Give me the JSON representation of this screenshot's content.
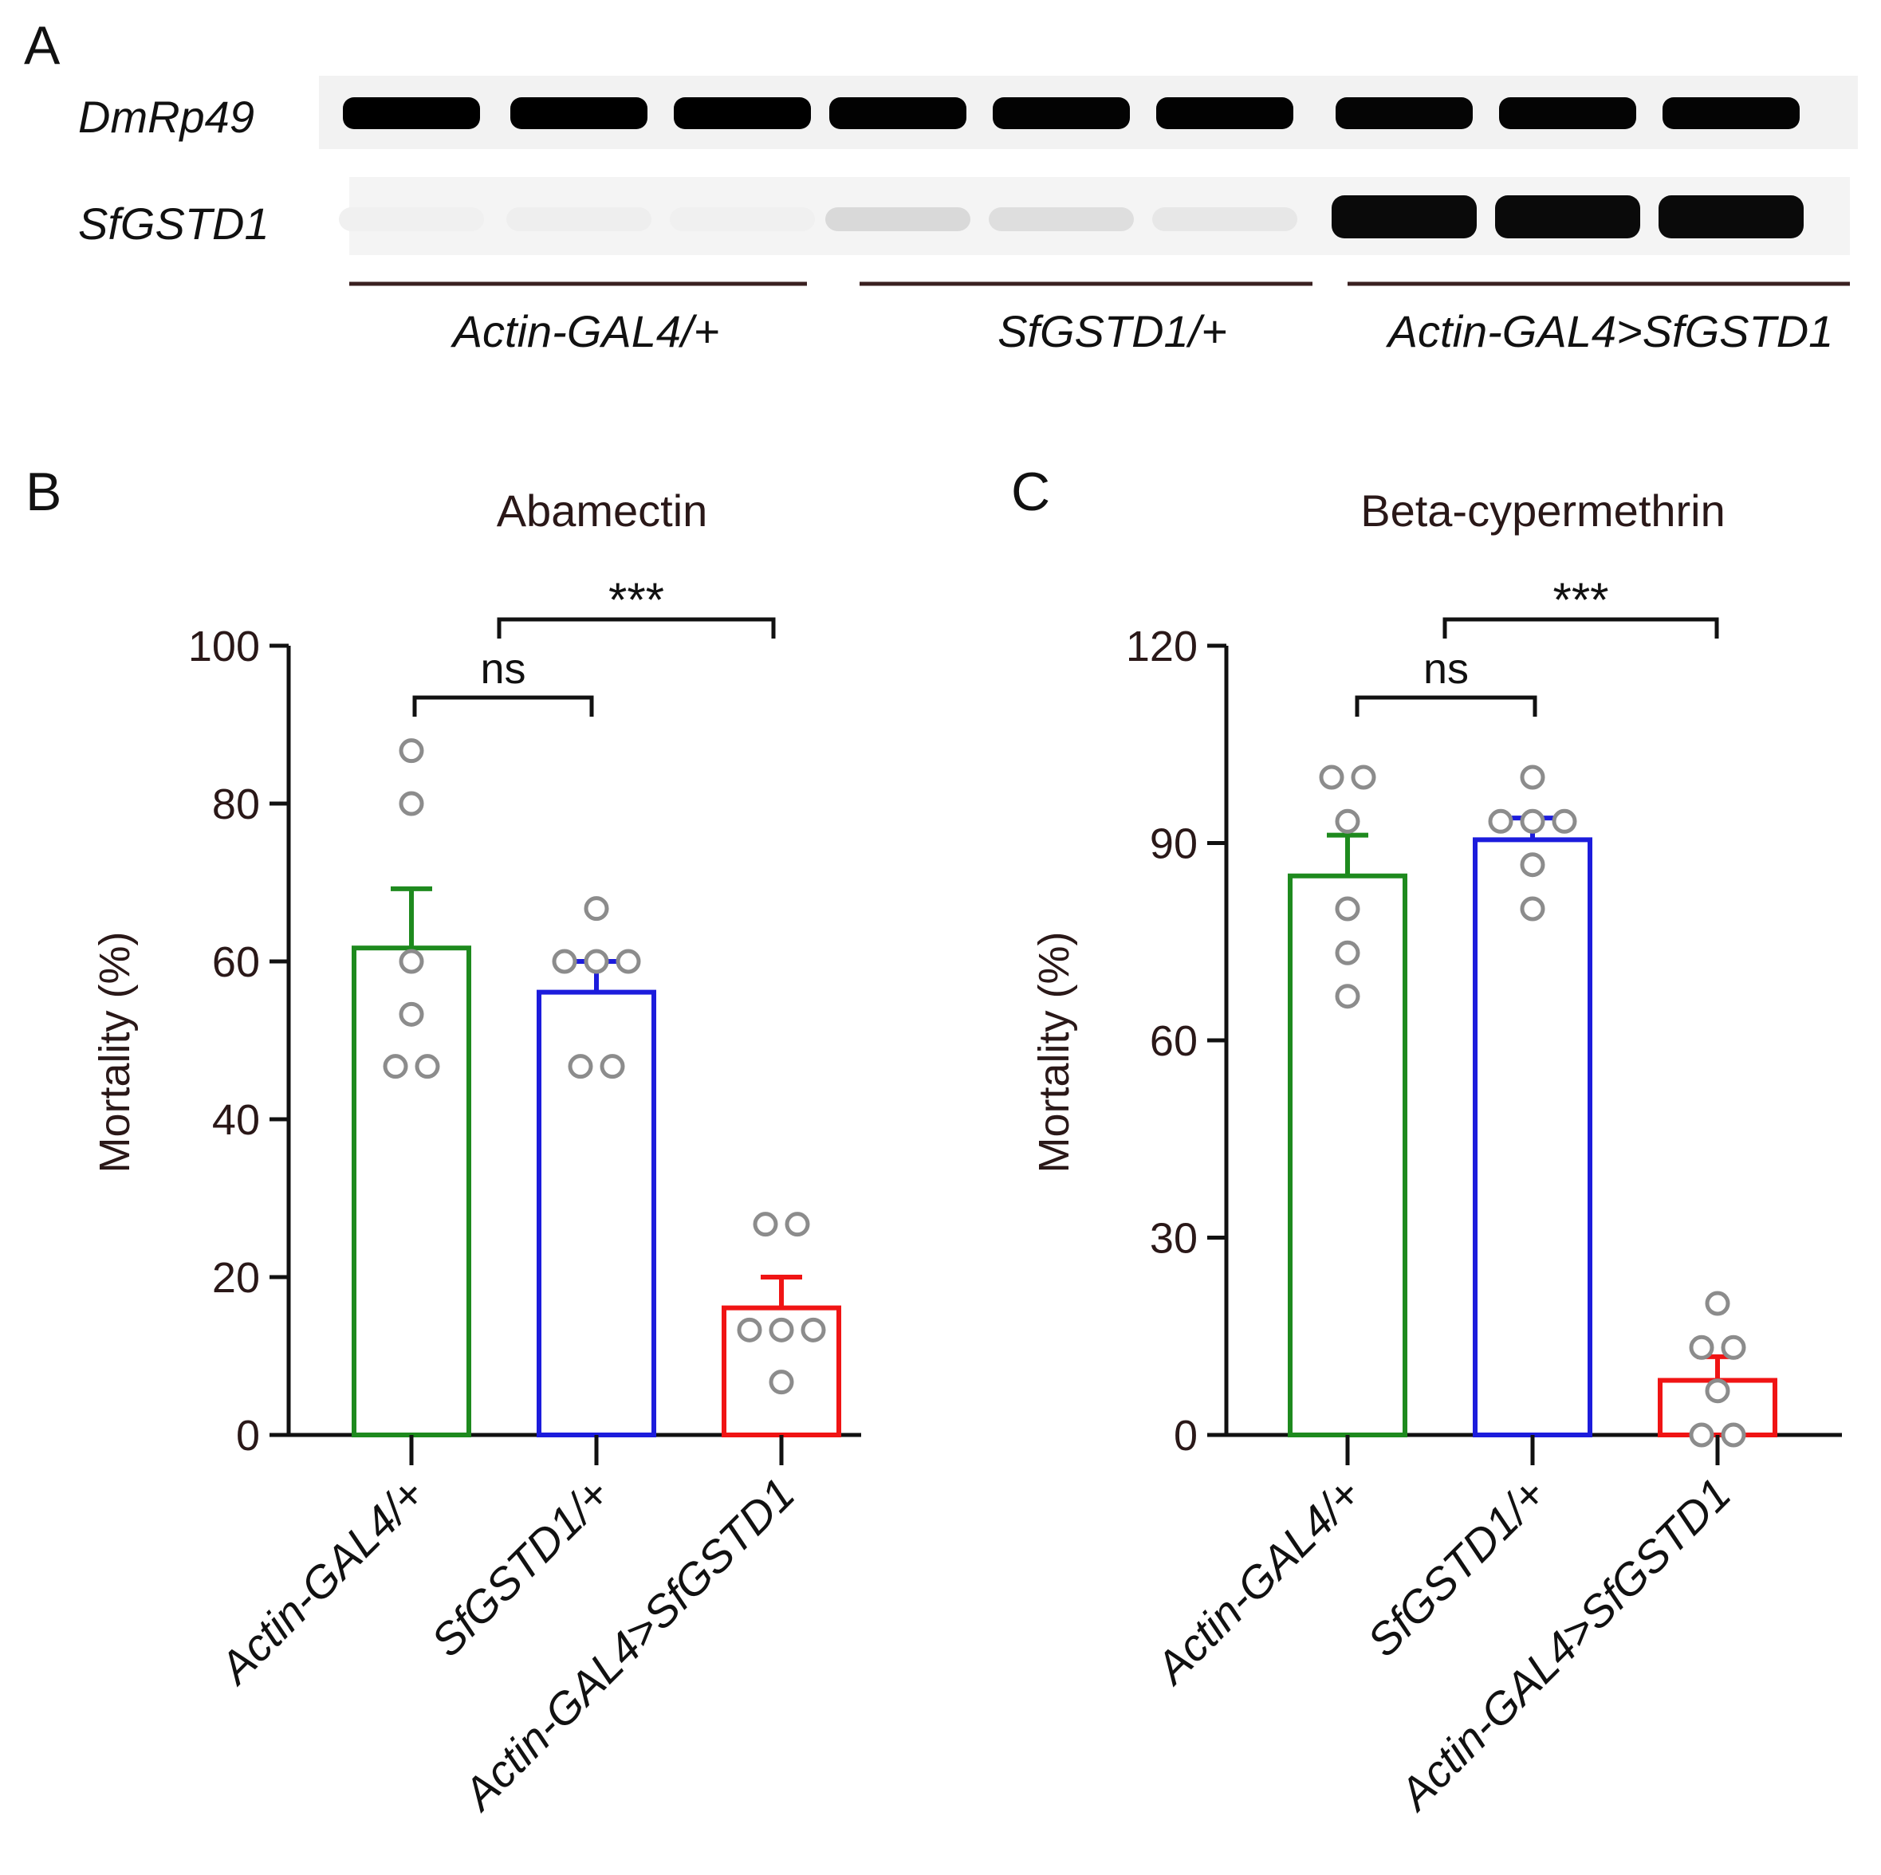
{
  "panel_a": {
    "letter": "A",
    "gene_labels": [
      "DmRp49",
      "SfGSTD1"
    ],
    "group_labels": [
      "Actin-GAL4/+",
      "SfGSTD1/+",
      "Actin-GAL4>SfGSTD1"
    ],
    "band_intensity": {
      "DmRp49": [
        1,
        1,
        1,
        0.95,
        0.92,
        0.95,
        0.88,
        0.9,
        0.9
      ],
      "SfGSTD1": [
        0.02,
        0.03,
        0.02,
        0.12,
        0.1,
        0.06,
        1,
        1,
        1
      ]
    }
  },
  "chart_data": [
    {
      "type": "bar",
      "panel_letter": "B",
      "title": "Abamectin",
      "ylabel": "Mortality (%)",
      "xlabel": "",
      "categories": [
        "Actin-GAL4/+",
        "SfGSTD1/+",
        "Actin-GAL4>SfGSTD1"
      ],
      "values": [
        61.7,
        56.1,
        16.1
      ],
      "sem": [
        7.5,
        3.9,
        3.9
      ],
      "points": [
        [
          86.7,
          80,
          60,
          53.3,
          46.7,
          46.7
        ],
        [
          66.7,
          60,
          60,
          60,
          46.7,
          46.7
        ],
        [
          26.7,
          26.7,
          13.3,
          13.3,
          13.3,
          6.7
        ]
      ],
      "ylim": [
        0,
        100
      ],
      "yticks": [
        0,
        20,
        40,
        60,
        80,
        100
      ],
      "colors": [
        "#1e8a1e",
        "#1c1cdc",
        "#f01414"
      ],
      "significance": [
        {
          "from": 0,
          "to": 1,
          "label": "ns"
        },
        {
          "from": 1,
          "to": 2,
          "label": "***"
        }
      ]
    },
    {
      "type": "bar",
      "panel_letter": "C",
      "title": "Beta-cypermethrin",
      "ylabel": "Mortality (%)",
      "xlabel": "",
      "categories": [
        "Actin-GAL4/+",
        "SfGSTD1/+",
        "Actin-GAL4>SfGSTD1"
      ],
      "values": [
        85,
        90.5,
        8.3
      ],
      "sem": [
        6.2,
        3.3,
        3.6
      ],
      "points": [
        [
          100,
          100,
          93.3,
          80,
          73.3,
          66.7
        ],
        [
          100,
          93.3,
          93.3,
          93.3,
          86.7,
          80
        ],
        [
          20,
          13.3,
          13.3,
          6.7,
          0,
          0
        ]
      ],
      "ylim": [
        0,
        120
      ],
      "yticks": [
        0,
        30,
        60,
        90,
        120
      ],
      "colors": [
        "#1e8a1e",
        "#1c1cdc",
        "#f01414"
      ],
      "significance": [
        {
          "from": 0,
          "to": 1,
          "label": "ns"
        },
        {
          "from": 1,
          "to": 2,
          "label": "***"
        }
      ]
    }
  ]
}
